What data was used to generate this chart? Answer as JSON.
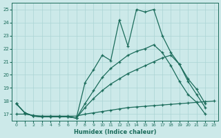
{
  "xlabel": "Humidex (Indice chaleur)",
  "bg_color": "#cce9e9",
  "grid_color": "#aad4d4",
  "line_color": "#1a6b5a",
  "xlim": [
    -0.5,
    23.5
  ],
  "ylim": [
    16.5,
    25.5
  ],
  "xticks": [
    0,
    1,
    2,
    3,
    4,
    5,
    6,
    7,
    8,
    9,
    10,
    11,
    12,
    13,
    14,
    15,
    16,
    17,
    18,
    19,
    20,
    21,
    22,
    23
  ],
  "yticks": [
    17,
    18,
    19,
    20,
    21,
    22,
    23,
    24,
    25
  ],
  "line1_x": [
    0,
    1,
    2,
    3,
    4,
    5,
    6,
    7,
    8,
    9,
    10,
    11,
    12,
    13,
    14,
    15,
    16,
    17,
    18,
    19,
    20,
    21,
    22
  ],
  "line1_y": [
    17.8,
    17.1,
    16.85,
    16.8,
    16.8,
    16.8,
    16.8,
    16.7,
    19.4,
    20.4,
    21.5,
    21.1,
    24.2,
    22.2,
    25.0,
    24.8,
    25.0,
    23.0,
    21.7,
    20.8,
    19.7,
    18.9,
    17.8
  ],
  "line2_x": [
    0,
    1,
    2,
    3,
    4,
    5,
    6,
    7,
    8,
    9,
    10,
    11,
    12,
    13,
    14,
    15,
    16,
    17,
    18,
    19,
    20,
    21,
    22,
    23
  ],
  "line2_y": [
    17.8,
    17.1,
    16.85,
    16.8,
    16.8,
    16.8,
    16.8,
    16.7,
    17.8,
    18.8,
    19.8,
    20.5,
    21.0,
    21.5,
    21.8,
    22.0,
    22.3,
    21.7,
    20.7,
    19.5,
    18.5,
    17.9,
    17.0,
    null
  ],
  "line3_x": [
    0,
    1,
    2,
    3,
    4,
    5,
    6,
    7,
    8,
    9,
    10,
    11,
    12,
    13,
    14,
    15,
    16,
    17,
    18,
    19,
    20,
    21,
    22,
    23
  ],
  "line3_y": [
    17.8,
    17.1,
    16.85,
    16.8,
    16.8,
    16.8,
    16.8,
    16.7,
    17.5,
    18.2,
    18.8,
    19.3,
    19.7,
    20.1,
    20.4,
    20.7,
    21.0,
    21.3,
    21.5,
    20.8,
    19.5,
    18.5,
    17.5,
    null
  ],
  "line4_x": [
    0,
    1,
    2,
    3,
    4,
    5,
    6,
    7,
    8,
    9,
    10,
    11,
    12,
    13,
    14,
    15,
    16,
    17,
    18,
    19,
    20,
    21,
    22,
    23
  ],
  "line4_y": [
    17.0,
    17.0,
    16.9,
    16.85,
    16.85,
    16.85,
    16.85,
    16.85,
    17.0,
    17.1,
    17.2,
    17.3,
    17.4,
    17.5,
    17.55,
    17.6,
    17.65,
    17.7,
    17.75,
    17.8,
    17.85,
    17.9,
    17.95,
    18.0
  ]
}
